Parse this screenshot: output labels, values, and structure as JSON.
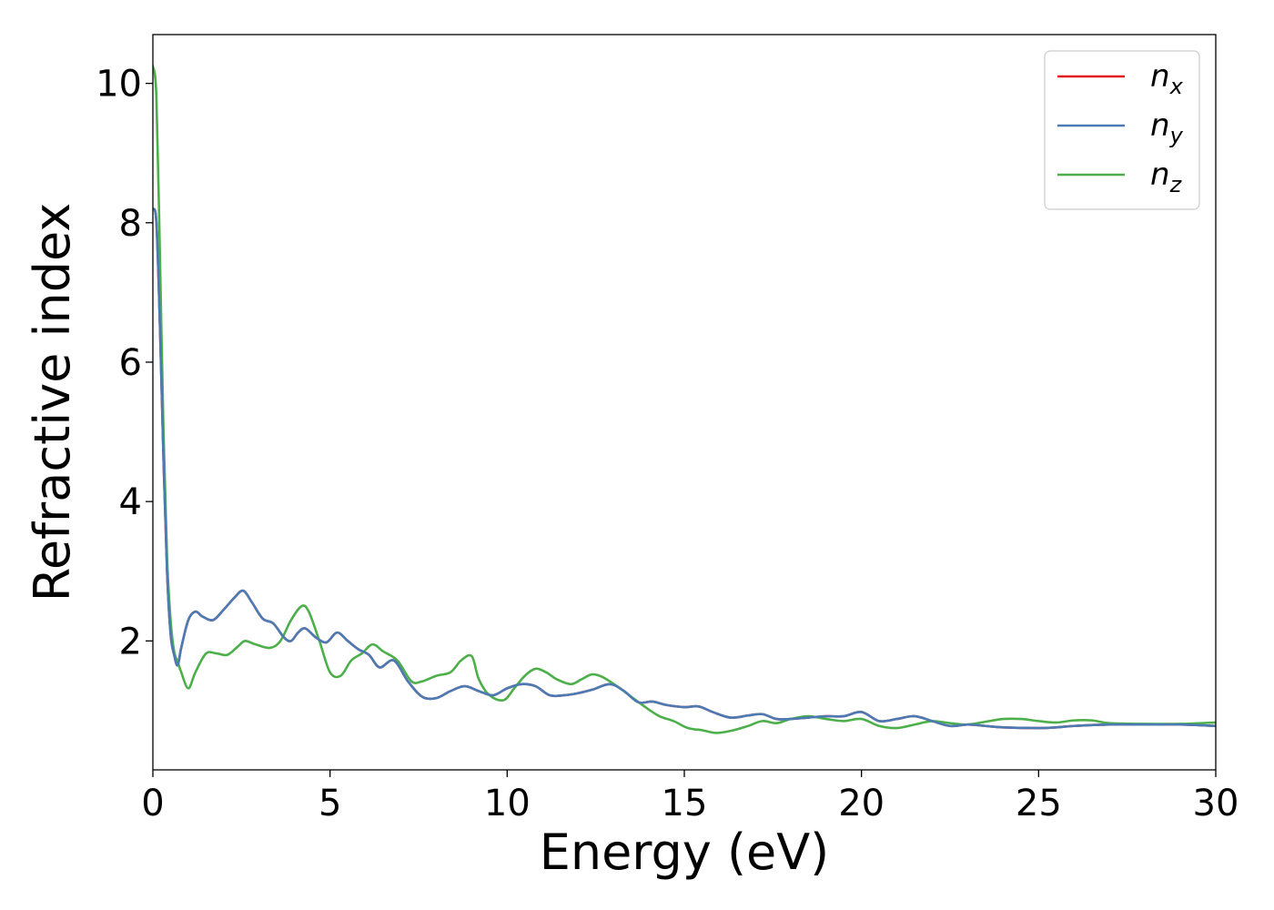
{
  "chart_data": {
    "type": "line",
    "title": "",
    "xlabel": "Energy (eV)",
    "ylabel": "Refractive index",
    "xlim": [
      0,
      30
    ],
    "ylim": [
      0.15,
      10.7
    ],
    "x_ticks": [
      0,
      5,
      10,
      15,
      20,
      25,
      30
    ],
    "y_ticks": [
      2,
      4,
      6,
      8,
      10
    ],
    "grid": false,
    "legend_position": "top-right",
    "series": [
      {
        "name": "n_x",
        "label_base": "n",
        "label_sub": "x",
        "color": "#e41a1c",
        "x": [
          0.0,
          0.1,
          0.2,
          0.3,
          0.4,
          0.5,
          0.6,
          0.7,
          0.8,
          1.0,
          1.2,
          1.4,
          1.7,
          2.0,
          2.3,
          2.55,
          2.8,
          3.1,
          3.4,
          3.7,
          3.9,
          4.1,
          4.3,
          4.6,
          4.9,
          5.2,
          5.5,
          5.8,
          6.1,
          6.4,
          6.8,
          7.2,
          7.6,
          8.0,
          8.4,
          8.8,
          9.2,
          9.6,
          10.0,
          10.4,
          10.8,
          11.2,
          11.6,
          12.0,
          12.4,
          12.9,
          13.3,
          13.7,
          14.1,
          14.5,
          15.0,
          15.4,
          15.8,
          16.3,
          16.8,
          17.2,
          17.6,
          18.0,
          18.5,
          19.0,
          19.5,
          20.0,
          20.5,
          21.0,
          21.5,
          22.0,
          22.5,
          23.0,
          23.5,
          24.0,
          25.0,
          25.5,
          26.0,
          27.0,
          28.0,
          29.0,
          30.0
        ],
        "y": [
          8.2,
          8.0,
          6.5,
          4.6,
          3.0,
          2.1,
          1.8,
          1.65,
          1.9,
          2.3,
          2.42,
          2.35,
          2.3,
          2.45,
          2.62,
          2.72,
          2.55,
          2.32,
          2.25,
          2.05,
          2.0,
          2.12,
          2.18,
          2.05,
          1.98,
          2.12,
          2.0,
          1.88,
          1.8,
          1.62,
          1.72,
          1.42,
          1.2,
          1.18,
          1.28,
          1.35,
          1.28,
          1.22,
          1.32,
          1.38,
          1.35,
          1.22,
          1.22,
          1.25,
          1.3,
          1.38,
          1.28,
          1.12,
          1.13,
          1.08,
          1.05,
          1.06,
          0.98,
          0.9,
          0.93,
          0.95,
          0.88,
          0.88,
          0.9,
          0.92,
          0.92,
          0.98,
          0.85,
          0.88,
          0.92,
          0.85,
          0.78,
          0.8,
          0.78,
          0.76,
          0.75,
          0.76,
          0.78,
          0.8,
          0.8,
          0.8,
          0.78
        ]
      },
      {
        "name": "n_y",
        "label_base": "n",
        "label_sub": "y",
        "color": "#4a7bb5",
        "x": [
          0.0,
          0.1,
          0.2,
          0.3,
          0.4,
          0.5,
          0.6,
          0.7,
          0.8,
          1.0,
          1.2,
          1.4,
          1.7,
          2.0,
          2.3,
          2.55,
          2.8,
          3.1,
          3.4,
          3.7,
          3.9,
          4.1,
          4.3,
          4.6,
          4.9,
          5.2,
          5.5,
          5.8,
          6.1,
          6.4,
          6.8,
          7.2,
          7.6,
          8.0,
          8.4,
          8.8,
          9.2,
          9.6,
          10.0,
          10.4,
          10.8,
          11.2,
          11.6,
          12.0,
          12.4,
          12.9,
          13.3,
          13.7,
          14.1,
          14.5,
          15.0,
          15.4,
          15.8,
          16.3,
          16.8,
          17.2,
          17.6,
          18.0,
          18.5,
          19.0,
          19.5,
          20.0,
          20.5,
          21.0,
          21.5,
          22.0,
          22.5,
          23.0,
          23.5,
          24.0,
          25.0,
          25.5,
          26.0,
          27.0,
          28.0,
          29.0,
          30.0
        ],
        "y": [
          8.2,
          8.0,
          6.5,
          4.6,
          3.0,
          2.1,
          1.8,
          1.65,
          1.9,
          2.3,
          2.42,
          2.35,
          2.3,
          2.45,
          2.62,
          2.72,
          2.55,
          2.32,
          2.25,
          2.05,
          2.0,
          2.12,
          2.18,
          2.05,
          1.98,
          2.12,
          2.0,
          1.88,
          1.8,
          1.62,
          1.72,
          1.42,
          1.2,
          1.18,
          1.28,
          1.35,
          1.28,
          1.22,
          1.32,
          1.38,
          1.35,
          1.22,
          1.22,
          1.25,
          1.3,
          1.38,
          1.28,
          1.12,
          1.13,
          1.08,
          1.05,
          1.06,
          0.98,
          0.9,
          0.93,
          0.95,
          0.88,
          0.88,
          0.9,
          0.92,
          0.92,
          0.98,
          0.85,
          0.88,
          0.92,
          0.85,
          0.78,
          0.8,
          0.78,
          0.76,
          0.75,
          0.76,
          0.78,
          0.8,
          0.8,
          0.8,
          0.78
        ]
      },
      {
        "name": "n_z",
        "label_base": "n",
        "label_sub": "z",
        "color": "#4daf4a",
        "x": [
          0.0,
          0.1,
          0.2,
          0.3,
          0.4,
          0.5,
          0.6,
          0.7,
          0.8,
          1.0,
          1.2,
          1.5,
          1.8,
          2.1,
          2.4,
          2.6,
          2.9,
          3.3,
          3.6,
          3.9,
          4.2,
          4.4,
          4.7,
          5.0,
          5.3,
          5.6,
          5.9,
          6.2,
          6.5,
          6.9,
          7.3,
          7.6,
          8.0,
          8.4,
          8.7,
          9.0,
          9.2,
          9.5,
          9.9,
          10.2,
          10.5,
          10.8,
          11.1,
          11.4,
          11.8,
          12.1,
          12.4,
          12.7,
          13.1,
          13.5,
          13.9,
          14.3,
          14.7,
          15.1,
          15.5,
          15.9,
          16.4,
          16.8,
          17.2,
          17.6,
          18.0,
          18.5,
          19.0,
          19.5,
          20.0,
          20.5,
          21.0,
          21.5,
          22.0,
          22.5,
          23.0,
          23.5,
          24.0,
          24.5,
          25.0,
          25.5,
          26.0,
          26.5,
          27.0,
          28.0,
          29.0,
          30.0
        ],
        "y": [
          10.25,
          9.8,
          7.5,
          5.0,
          3.2,
          2.3,
          1.85,
          1.7,
          1.55,
          1.32,
          1.55,
          1.82,
          1.82,
          1.8,
          1.92,
          2.0,
          1.95,
          1.9,
          2.0,
          2.3,
          2.5,
          2.42,
          2.0,
          1.55,
          1.5,
          1.72,
          1.82,
          1.95,
          1.85,
          1.72,
          1.42,
          1.42,
          1.5,
          1.55,
          1.72,
          1.78,
          1.45,
          1.22,
          1.15,
          1.32,
          1.5,
          1.6,
          1.55,
          1.45,
          1.38,
          1.45,
          1.52,
          1.48,
          1.35,
          1.2,
          1.05,
          0.92,
          0.85,
          0.75,
          0.72,
          0.68,
          0.72,
          0.78,
          0.85,
          0.82,
          0.88,
          0.92,
          0.88,
          0.85,
          0.88,
          0.78,
          0.75,
          0.8,
          0.85,
          0.82,
          0.8,
          0.84,
          0.88,
          0.88,
          0.85,
          0.83,
          0.86,
          0.86,
          0.82,
          0.81,
          0.81,
          0.83
        ]
      }
    ]
  }
}
